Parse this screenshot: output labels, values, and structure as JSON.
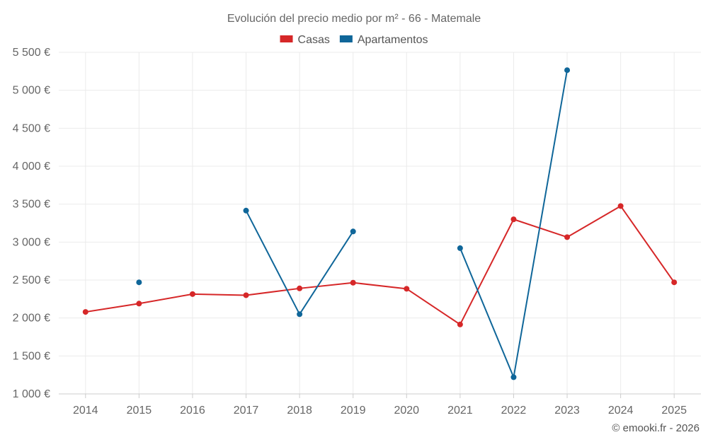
{
  "chart_data": {
    "type": "line",
    "title": "Evolución del precio medio por m² - 66 - Matemale",
    "x": [
      "2014",
      "2015",
      "2016",
      "2017",
      "2018",
      "2019",
      "2020",
      "2021",
      "2022",
      "2023",
      "2024",
      "2025"
    ],
    "y_ticks": [
      "1 000 €",
      "1 500 €",
      "2 000 €",
      "2 500 €",
      "3 000 €",
      "3 500 €",
      "4 000 €",
      "4 500 €",
      "5 000 €",
      "5 500 €"
    ],
    "ylim": [
      1000,
      5500
    ],
    "grid": true,
    "legend_position": "top-center",
    "series": [
      {
        "name": "Casas",
        "color": "#d62728",
        "values": [
          2080,
          2190,
          2315,
          2300,
          2390,
          2465,
          2385,
          1915,
          3300,
          3065,
          3475,
          2470
        ]
      },
      {
        "name": "Apartamentos",
        "color": "#0f6699",
        "values": [
          null,
          2470,
          null,
          3415,
          2050,
          3140,
          null,
          2920,
          1220,
          5265,
          null,
          null
        ]
      }
    ]
  },
  "credit": "© emooki.fr - 2026"
}
